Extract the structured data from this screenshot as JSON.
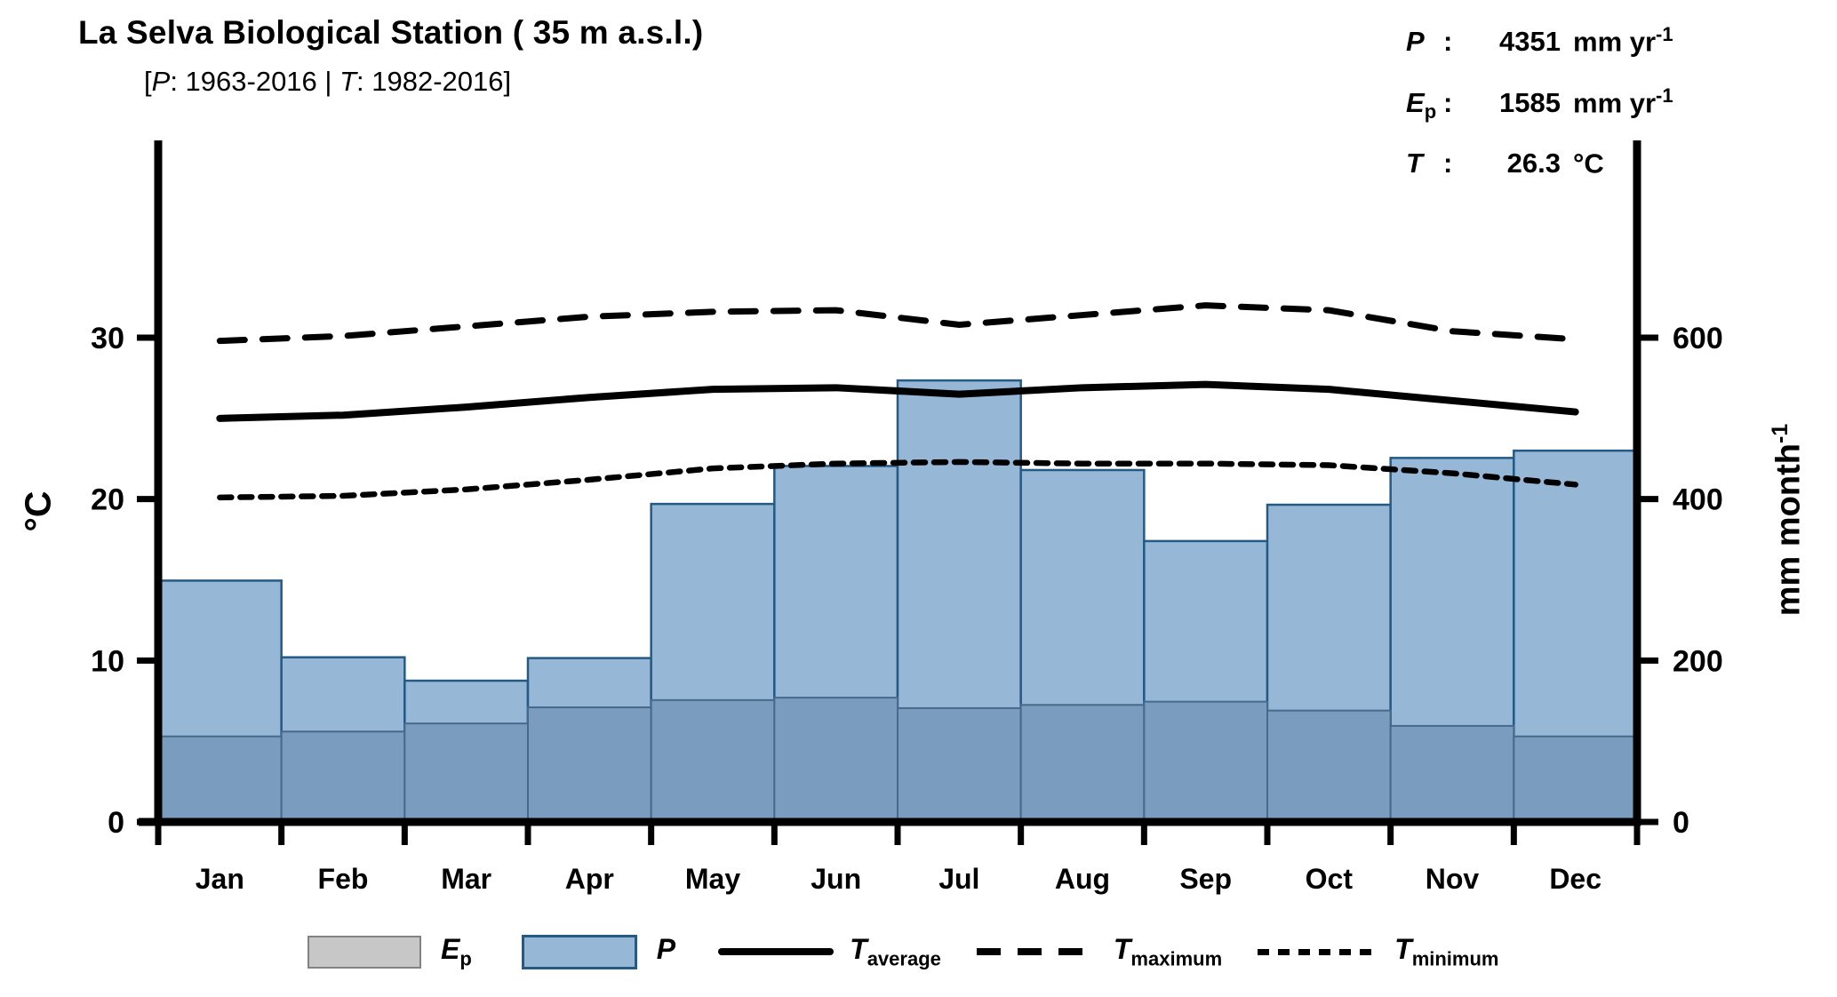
{
  "header": {
    "title": "La Selva Biological Station ( 35 m a.s.l.)",
    "subtitle": {
      "open": "[",
      "p_sym": "P",
      "p_years": ": 1963-2016 ",
      "sep": "|",
      "t_sym": " T",
      "t_years": ": 1982-2016",
      "close": "]"
    }
  },
  "stats": {
    "rows": [
      {
        "sym": "P",
        "sub": "",
        "colon": ":",
        "value": "4351",
        "unit": "mm yr",
        "exp": "-1"
      },
      {
        "sym": "E",
        "sub": "p",
        "colon": ":",
        "value": "1585",
        "unit": "mm yr",
        "exp": "-1"
      },
      {
        "sym": "T",
        "sub": "",
        "colon": ":",
        "value": "26.3",
        "unit": "°C",
        "exp": ""
      }
    ]
  },
  "axes": {
    "left_label": "°C",
    "right_label_main": "mm month",
    "right_label_exp": "-1",
    "left_ticks": [
      0,
      10,
      20,
      30
    ],
    "right_ticks": [
      0,
      200,
      400,
      600
    ]
  },
  "legend": {
    "items": [
      {
        "sym": "E",
        "sub": "p"
      },
      {
        "sym": "P",
        "sub": ""
      },
      {
        "sym": "T",
        "sub": "average"
      },
      {
        "sym": "T",
        "sub": "maximum"
      },
      {
        "sym": "T",
        "sub": "minimum"
      }
    ]
  },
  "chart_data": {
    "type": "bar+line climograph",
    "title": "La Selva Biological Station ( 35 m a.s.l.)",
    "subtitle": "[P: 1963-2016 | T: 1982-2016]",
    "categories": [
      "Jan",
      "Feb",
      "Mar",
      "Apr",
      "May",
      "Jun",
      "Jul",
      "Aug",
      "Sep",
      "Oct",
      "Nov",
      "Dec"
    ],
    "series": [
      {
        "name": "P",
        "type": "bar",
        "axis": "right",
        "unit": "mm month-1",
        "values": [
          299,
          204,
          175,
          203,
          394,
          441,
          547,
          436,
          348,
          393,
          451,
          460
        ]
      },
      {
        "name": "Ep",
        "type": "bar",
        "axis": "right",
        "unit": "mm month-1",
        "values": [
          106,
          112,
          122,
          142,
          151,
          154,
          141,
          145,
          149,
          138,
          119,
          106
        ]
      },
      {
        "name": "T_average",
        "type": "line",
        "style": "solid",
        "axis": "left",
        "unit": "degC",
        "values": [
          25.0,
          25.2,
          25.7,
          26.3,
          26.8,
          26.9,
          26.5,
          26.9,
          27.1,
          26.8,
          26.1,
          25.4
        ]
      },
      {
        "name": "T_maximum",
        "type": "line",
        "style": "long-dash",
        "axis": "left",
        "unit": "degC",
        "values": [
          29.8,
          30.1,
          30.7,
          31.3,
          31.6,
          31.7,
          30.8,
          31.4,
          32.0,
          31.7,
          30.4,
          29.9
        ]
      },
      {
        "name": "T_minimum",
        "type": "line",
        "style": "short-dash",
        "axis": "left",
        "unit": "degC",
        "values": [
          20.1,
          20.2,
          20.6,
          21.2,
          21.9,
          22.2,
          22.3,
          22.2,
          22.2,
          22.1,
          21.6,
          20.9
        ]
      }
    ],
    "left_axis": {
      "label": "°C",
      "ticks": [
        0,
        10,
        20,
        30
      ]
    },
    "right_axis": {
      "label": "mm month-1",
      "ticks": [
        0,
        200,
        400,
        600
      ]
    },
    "scale_link": "axes aligned: 1 degC = 20 mm month-1",
    "annual": {
      "P_mm_yr": 4351,
      "Ep_mm_yr": 1585,
      "T_mean_C": 26.3
    },
    "legend_position": "bottom",
    "grid": false
  },
  "colors": {
    "p_fill": "#96B8D6",
    "p_border": "#255A85",
    "ep_fill": "#7A9CBE",
    "ep_border": "#47698C",
    "ep_legend_fill": "#C7C7C7",
    "ep_legend_border": "#828282",
    "axis": "#000000",
    "line": "#000000"
  }
}
